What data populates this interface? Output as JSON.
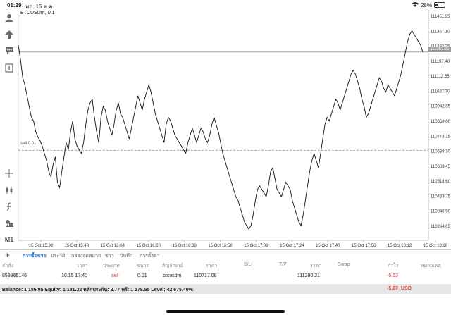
{
  "statusbar": {
    "time": "01:29",
    "date": "พฤ. 16 ต.ค.",
    "battery": "28%",
    "battery_level": 0.28
  },
  "chart_header": {
    "symbol": "BTCUSDm, M1"
  },
  "sell_line_label": "sell 0.01",
  "current_price": "111262.21",
  "icons": [
    "user-icon",
    "broker-icon",
    "chat-icon",
    "add-chart-icon",
    "crosshair-icon",
    "candle-type-icon",
    "indicator-icon",
    "objects-icon",
    "timeframe-icon"
  ],
  "toolbar": {
    "timeframe": "M1"
  },
  "chart_data": {
    "type": "line",
    "title": "BTCUSDm, M1",
    "y_ticks": [
      "111451.95",
      "111367.10",
      "111282.25",
      "111197.40",
      "111112.55",
      "111027.70",
      "110942.85",
      "110858.00",
      "110773.15",
      "110688.30",
      "110603.45",
      "110518.60",
      "110433.75",
      "110348.90",
      "110264.05"
    ],
    "x_ticks": [
      "15 Oct 15:32",
      "15 Oct 15:48",
      "15 Oct 16:04",
      "15 Oct 16:20",
      "15 Oct 16:36",
      "15 Oct 16:52",
      "15 Oct 17:08",
      "15 Oct 17:24",
      "15 Oct 17:40",
      "15 Oct 17:56",
      "15 Oct 18:12",
      "15 Oct 18:28"
    ],
    "ylim": [
      110230,
      111480
    ],
    "sell_level": 110717.08,
    "current_level": 111262.21,
    "values": [
      111300,
      111220,
      111120,
      111080,
      111020,
      110960,
      110900,
      110880,
      110820,
      110790,
      110770,
      110740,
      110700,
      110660,
      110600,
      110570,
      110640,
      110680,
      110540,
      110510,
      110600,
      110680,
      110760,
      110720,
      110820,
      110880,
      110780,
      110740,
      110720,
      110700,
      110760,
      110860,
      110940,
      110980,
      111000,
      110900,
      110820,
      110760,
      110900,
      110960,
      110940,
      110880,
      110840,
      110800,
      110860,
      110940,
      110980,
      110920,
      110900,
      110860,
      110820,
      110780,
      110840,
      110900,
      110960,
      111020,
      110980,
      110940,
      111000,
      111040,
      111080,
      111040,
      110980,
      110920,
      110880,
      110840,
      110800,
      110760,
      110860,
      110900,
      110880,
      110840,
      110800,
      110780,
      110760,
      110740,
      110720,
      110700,
      110760,
      110800,
      110840,
      110800,
      110760,
      110800,
      110840,
      110820,
      110780,
      110760,
      110800,
      110860,
      110900,
      110860,
      110820,
      110760,
      110700,
      110660,
      110620,
      110580,
      110540,
      110500,
      110460,
      110440,
      110400,
      110360,
      110320,
      110300,
      110280,
      110300,
      110360,
      110440,
      110500,
      110520,
      110500,
      110480,
      110460,
      110520,
      110600,
      110620,
      110560,
      110500,
      110480,
      110460,
      110500,
      110540,
      110520,
      110500,
      110440,
      110400,
      110360,
      110320,
      110300,
      110360,
      110440,
      110520,
      110600,
      110660,
      110700,
      110660,
      110620,
      110700,
      110780,
      110860,
      110900,
      110880,
      110920,
      110960,
      111000,
      110980,
      110940,
      110980,
      111020,
      111060,
      111100,
      111140,
      111160,
      111140,
      111100,
      111060,
      111000,
      110960,
      110900,
      110920,
      110960,
      111000,
      111040,
      111080,
      111120,
      111100,
      111060,
      111040,
      111080,
      111060,
      111040,
      111020,
      111060,
      111100,
      111140,
      111200,
      111260,
      111320,
      111360,
      111380,
      111360,
      111340,
      111320,
      111300,
      111262
    ]
  },
  "tabs": [
    "การซื้อขาย",
    "ประวัติ",
    "กล่องจดหมาย",
    "ข่าว",
    "บันทึก",
    "การตั้งค่า"
  ],
  "table": {
    "headers": [
      "คำสั่ง",
      "เวลา",
      "ประเภท",
      "ขนาด",
      "สัญลักษณ์",
      "ราคา",
      "S/L",
      "T/P",
      "ราคา",
      "Swap",
      "กำไร",
      "หมายเหตุ"
    ],
    "row": [
      "858965146",
      "10.15 17:40",
      "sell",
      "0.01",
      "btcusdm",
      "110717.08",
      "",
      "",
      "111280.21",
      "",
      "-5.63",
      ""
    ]
  },
  "balance": {
    "text": "Balance: 1 186.95 Equity: 1 181.32 หลักประกัน: 2.77 ฟรี: 1 178.55 Level: 42 675.40%",
    "profit": "-5.63",
    "currency": "USD"
  }
}
